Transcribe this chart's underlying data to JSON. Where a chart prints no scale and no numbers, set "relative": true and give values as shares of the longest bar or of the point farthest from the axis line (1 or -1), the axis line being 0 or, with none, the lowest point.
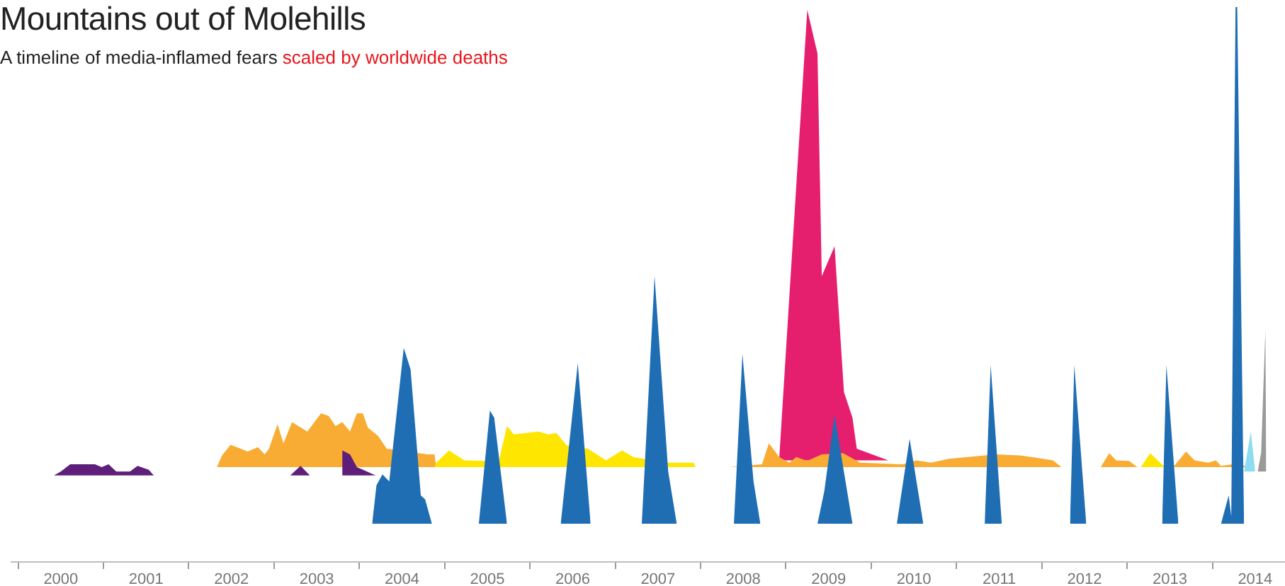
{
  "chart_data": {
    "type": "area",
    "title": "Mountains out of Molehills",
    "subtitle": "A timeline of media-inflamed fears",
    "annotations": [
      "scaled by worldwide deaths"
    ],
    "relative": true,
    "xlim": [
      1999.92,
      2014.85
    ],
    "xticks": [
      {
        "value": 2000.5,
        "label": "2000"
      },
      {
        "value": 2001.5,
        "label": "2001"
      },
      {
        "value": 2002.5,
        "label": "2002"
      },
      {
        "value": 2003.5,
        "label": "2003"
      },
      {
        "value": 2004.5,
        "label": "2004"
      },
      {
        "value": 2005.5,
        "label": "2005"
      },
      {
        "value": 2006.5,
        "label": "2006"
      },
      {
        "value": 2007.5,
        "label": "2007"
      },
      {
        "value": 2008.5,
        "label": "2008"
      },
      {
        "value": 2009.5,
        "label": "2009"
      },
      {
        "value": 2010.5,
        "label": "2010"
      },
      {
        "value": 2011.5,
        "label": "2011"
      },
      {
        "value": 2012.5,
        "label": "2012"
      },
      {
        "value": 2013.5,
        "label": "2013"
      },
      {
        "value": 2014.5,
        "label": "2014"
      }
    ],
    "series": [
      {
        "color": "#e61e6e",
        "x": [
          2008.92,
          2009.25,
          2009.37,
          2009.42,
          2009.57,
          2009.68,
          2009.78,
          2009.83,
          2010.2
        ],
        "values": [
          0.183,
          0.995,
          0.916,
          0.515,
          0.569,
          0.306,
          0.26,
          0.204,
          0.183
        ]
      },
      {
        "color": "#f8ac33",
        "x": [
          2002.33,
          2002.39,
          2002.49,
          2002.61,
          2002.69,
          2002.81,
          2002.89,
          2002.94,
          2003.04,
          2003.11,
          2003.21,
          2003.39,
          2003.55,
          2003.64,
          2003.72,
          2003.8,
          2003.89,
          2003.97,
          2004.04,
          2004.1,
          2004.22,
          2004.32,
          2004.8,
          2004.88,
          2004.9,
          2006.5,
          2008.34,
          2008.72,
          2008.8,
          2008.92,
          2009.04,
          2009.12,
          2009.25,
          2009.42,
          2009.67,
          2009.87,
          2010.37,
          2010.53,
          2010.7,
          2010.91,
          2011.46,
          2011.74,
          2011.88,
          2012.13,
          2012.23,
          2012.54,
          2012.69,
          2012.79,
          2012.87,
          2013.02,
          2013.12,
          2013.54,
          2013.69,
          2013.79,
          2013.95,
          2014.04,
          2014.1,
          2014.24,
          2014.49
        ],
        "values": [
          0.171,
          0.192,
          0.211,
          0.204,
          0.199,
          0.207,
          0.194,
          0.204,
          0.248,
          0.214,
          0.252,
          0.235,
          0.268,
          0.263,
          0.245,
          0.252,
          0.235,
          0.268,
          0.268,
          0.242,
          0.227,
          0.204,
          0.194,
          0.194,
          0.171,
          null,
          0.171,
          0.176,
          0.214,
          0.189,
          0.179,
          0.189,
          0.182,
          0.194,
          0.196,
          0.179,
          0.176,
          0.183,
          0.179,
          0.186,
          0.194,
          0.192,
          0.189,
          0.183,
          0.171,
          0.171,
          0.171,
          0.196,
          0.183,
          0.182,
          0.171,
          0.171,
          0.199,
          0.183,
          0.179,
          0.183,
          0.173,
          0.176,
          0.171
        ]
      },
      {
        "color": "#ffe600",
        "x": [
          2004.88,
          2004.9,
          2005.05,
          2005.23,
          2005.47,
          2005.63,
          2005.73,
          2005.81,
          2006.1,
          2006.21,
          2006.31,
          2006.43,
          2006.68,
          2006.89,
          2007.08,
          2007.21,
          2007.59,
          2007.92,
          2007.94,
          2010.5,
          2013.16,
          2013.27,
          2013.44
        ],
        "values": [
          0.171,
          0.179,
          0.201,
          0.183,
          0.182,
          0.179,
          0.245,
          0.23,
          0.235,
          0.23,
          0.232,
          0.21,
          0.204,
          0.183,
          0.201,
          0.189,
          0.179,
          0.179,
          0.171,
          null,
          0.171,
          0.196,
          0.171
        ]
      },
      {
        "color": "#5e1e7a",
        "x": [
          2000.42,
          2000.5,
          2000.61,
          2000.9,
          2000.98,
          2001.06,
          2001.15,
          2001.31,
          2001.4,
          2001.53,
          2001.59,
          2002.5,
          2003.19,
          2003.31,
          2003.42,
          2003.5,
          2003.79,
          2003.8,
          2003.89,
          2003.97,
          2004.19
        ],
        "values": [
          0.156,
          0.163,
          0.176,
          0.176,
          0.171,
          0.176,
          0.163,
          0.163,
          0.173,
          0.166,
          0.156,
          null,
          0.156,
          0.173,
          0.156,
          null,
          0.156,
          0.201,
          0.194,
          0.171,
          0.156
        ]
      },
      {
        "color": "#8ddcf2",
        "x": [
          2014.37,
          2014.45,
          2014.5
        ],
        "values": [
          0.163,
          0.235,
          0.163
        ]
      },
      {
        "color": "#9a9a9a",
        "x": [
          2014.53,
          2014.57,
          2014.62,
          2014.63
        ],
        "values": [
          0.163,
          0.196,
          0.418,
          0.163
        ]
      },
      {
        "color": "#1f6eb4",
        "x": [
          2004.15,
          2004.2,
          2004.27,
          2004.35,
          2004.52,
          2004.6,
          2004.72,
          2004.77,
          2004.85,
          2005.1,
          2005.4,
          2005.53,
          2005.58,
          2005.73,
          2006.0,
          2006.36,
          2006.56,
          2006.71,
          2007.0,
          2007.31,
          2007.46,
          2007.62,
          2007.72,
          2008.0,
          2008.39,
          2008.49,
          2008.62,
          2008.7,
          2009.0,
          2009.37,
          2009.45,
          2009.57,
          2009.78,
          2010.0,
          2010.3,
          2010.45,
          2010.61,
          2011.0,
          2011.33,
          2011.4,
          2011.53,
          2012.0,
          2012.33,
          2012.38,
          2012.52,
          2013.0,
          2013.41,
          2013.46,
          2013.6,
          2014.0,
          2014.1,
          2014.19,
          2014.22,
          2014.27,
          2014.29,
          2014.37
        ],
        "values": [
          0.069,
          0.138,
          0.158,
          0.145,
          0.386,
          0.347,
          0.12,
          0.113,
          0.069,
          null,
          0.069,
          0.273,
          0.26,
          0.069,
          null,
          0.069,
          0.358,
          0.069,
          null,
          0.069,
          0.515,
          0.163,
          0.069,
          null,
          0.069,
          0.375,
          0.145,
          0.069,
          null,
          0.069,
          0.128,
          0.265,
          0.069,
          null,
          0.069,
          0.222,
          0.069,
          null,
          0.069,
          0.355,
          0.069,
          null,
          0.069,
          0.355,
          0.069,
          null,
          0.069,
          0.355,
          0.069,
          null,
          0.069,
          0.12,
          0.082,
          1,
          1,
          0.069
        ]
      }
    ]
  }
}
